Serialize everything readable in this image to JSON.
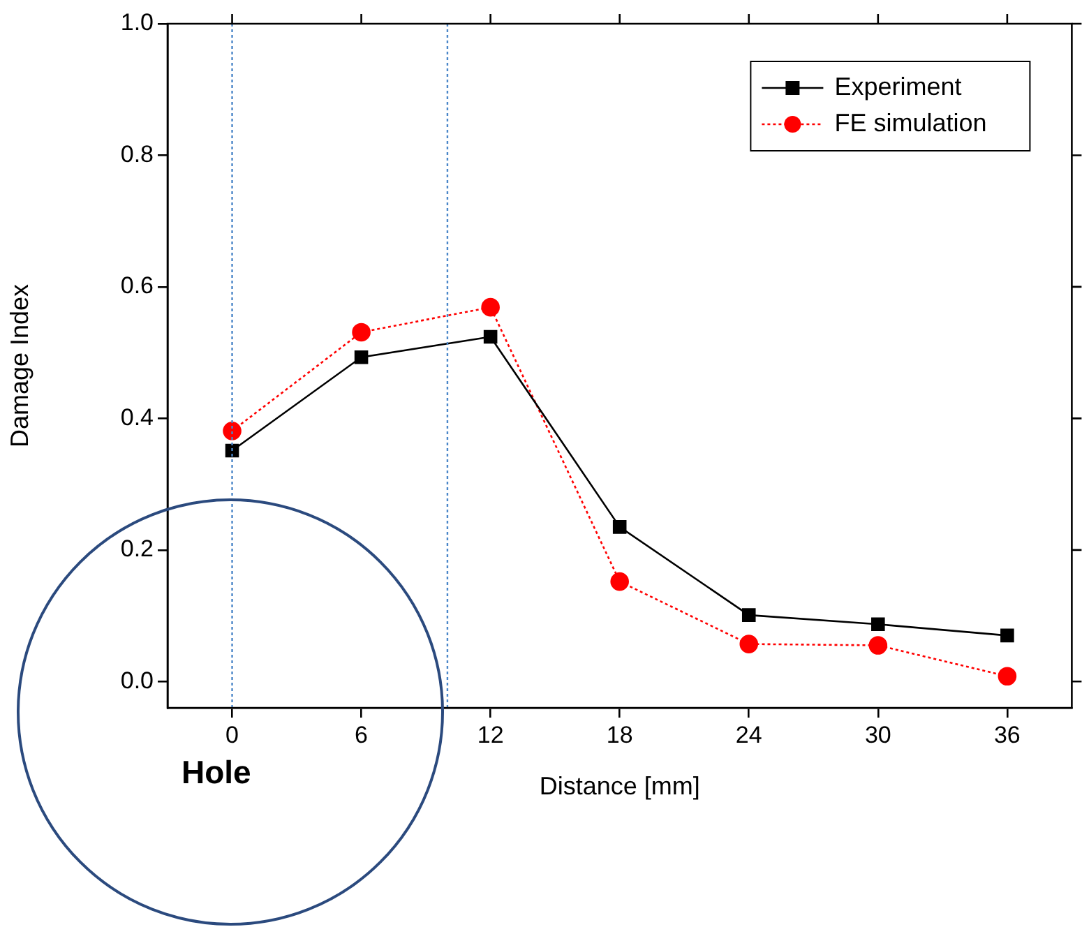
{
  "chart_data": {
    "type": "line",
    "xlabel": "Distance [mm]",
    "ylabel": "Damage Index",
    "x": [
      0,
      6,
      12,
      18,
      24,
      30,
      36
    ],
    "series": [
      {
        "name": "Experiment",
        "color": "#000000",
        "marker": "square",
        "line_style": "solid",
        "values": [
          0.351,
          0.493,
          0.524,
          0.235,
          0.101,
          0.087,
          0.07
        ]
      },
      {
        "name": "FE simulation",
        "color": "#ff0000",
        "marker": "circle",
        "line_style": "dotted",
        "values": [
          0.381,
          0.531,
          0.569,
          0.152,
          0.057,
          0.055,
          0.008
        ]
      }
    ],
    "xlim": [
      -3,
      39
    ],
    "xticks": [
      0,
      6,
      12,
      18,
      24,
      30,
      36
    ],
    "ylim": [
      -0.04,
      1.0
    ],
    "yticks": [
      {
        "value": 0,
        "label": "0.0"
      },
      {
        "value": 0.2,
        "label": "0.2"
      },
      {
        "value": 0.4,
        "label": "0.4"
      },
      {
        "value": 0.6,
        "label": "0.6"
      },
      {
        "value": 0.8,
        "label": "0.8"
      },
      {
        "value": 1.0,
        "label": "1.0"
      }
    ],
    "ref_lines": [
      {
        "axis": "x",
        "value": 0,
        "color": "#4a86c8",
        "line_style": "dotted"
      },
      {
        "axis": "x",
        "value": 10,
        "color": "#4a86c8",
        "line_style": "dotted"
      }
    ],
    "annotations": [
      "Hole"
    ],
    "grid": false,
    "legend": "top right"
  }
}
